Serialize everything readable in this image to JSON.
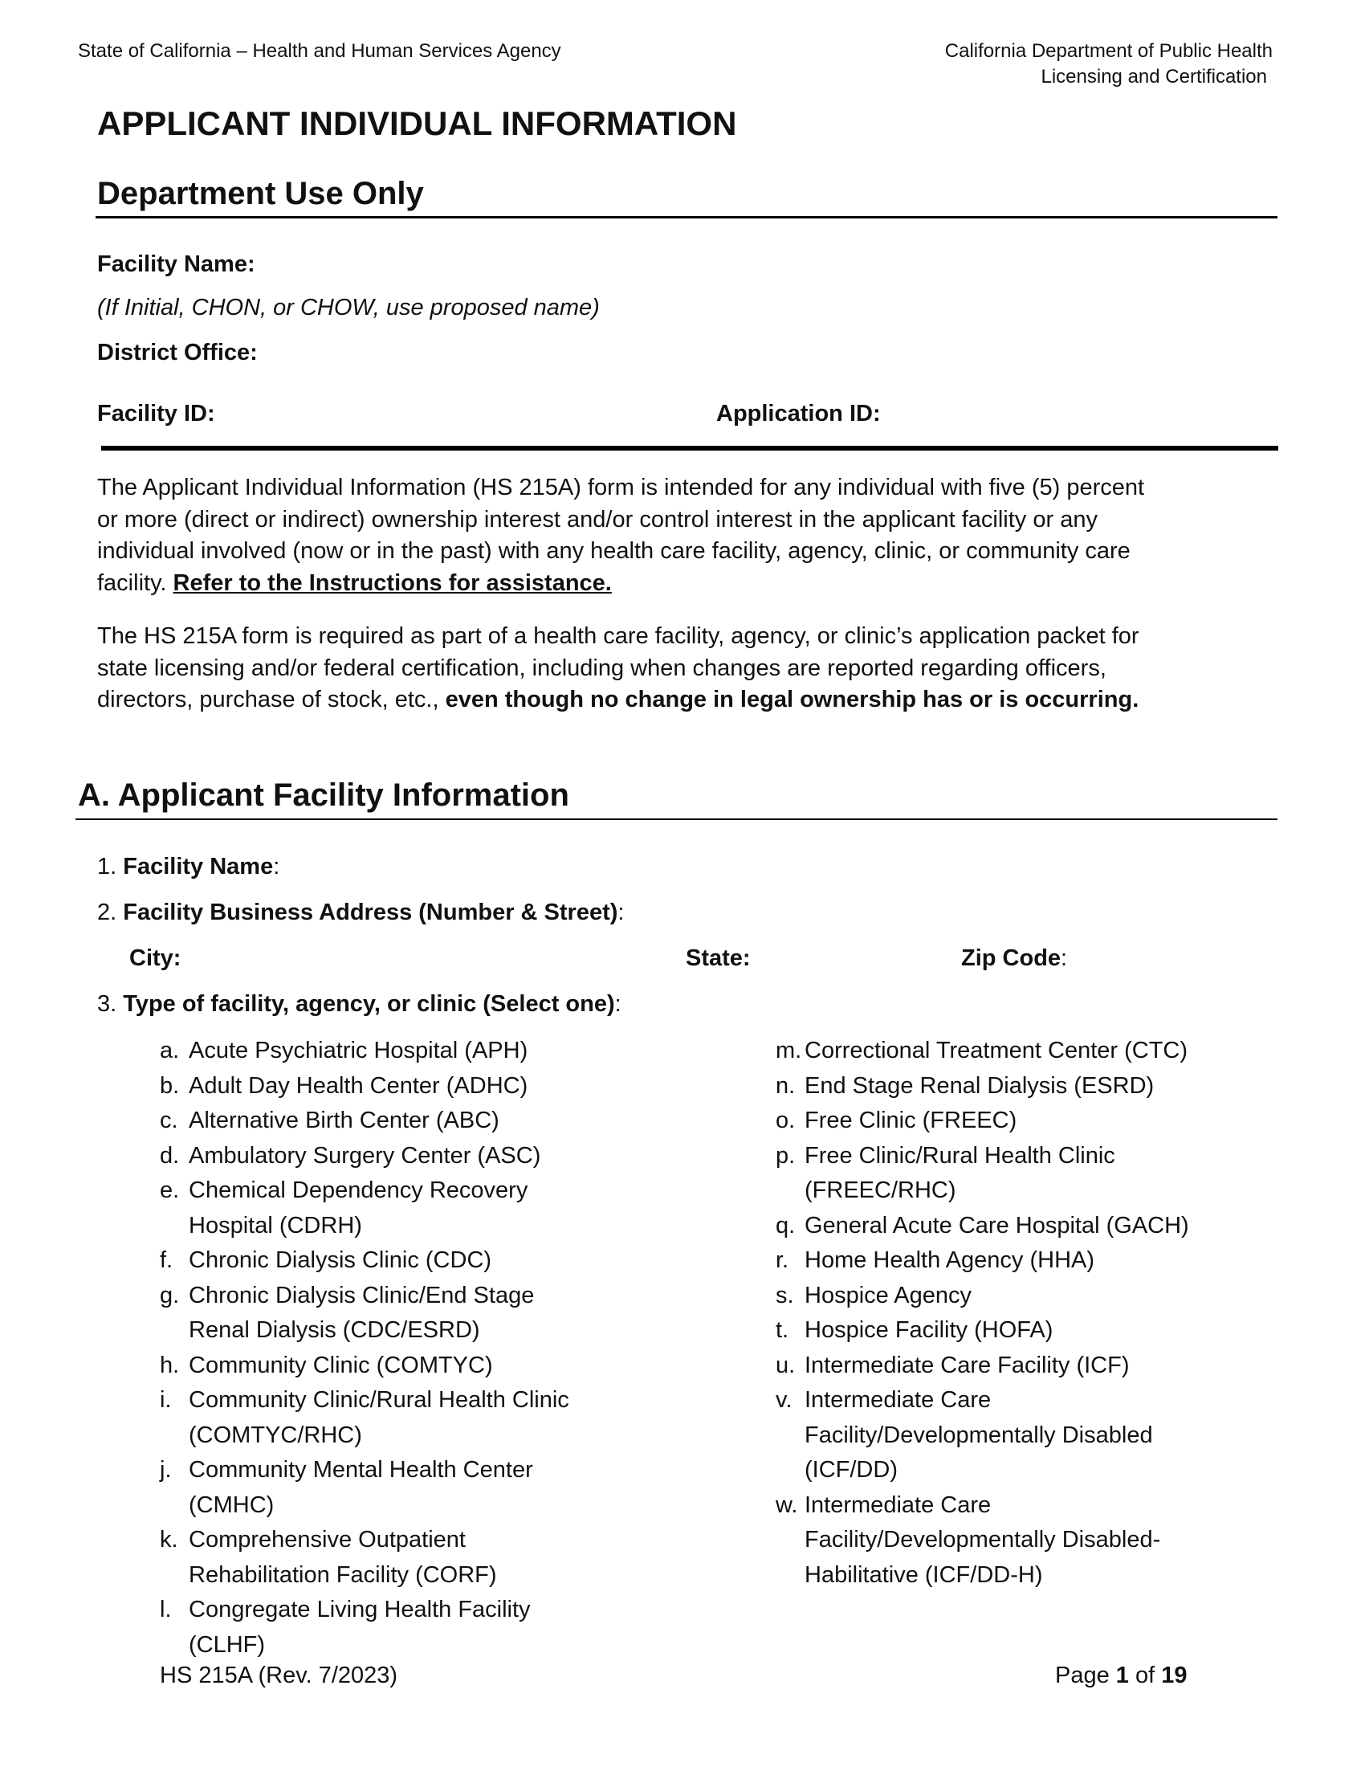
{
  "header": {
    "left": "State of California – Health and Human Services Agency",
    "right_line1": "California Department of Public Health",
    "right_line2": "Licensing and Certification"
  },
  "title": "APPLICANT INDIVIDUAL INFORMATION",
  "dept": {
    "heading": "Department Use Only",
    "facility_name": "Facility Name:",
    "facility_name_note": "(If Initial, CHON, or CHOW, use proposed name)",
    "district_office": "District Office:",
    "facility_id": "Facility ID:",
    "application_id": "Application ID:"
  },
  "intro": {
    "p1": "The Applicant Individual Information (HS 215A) form is intended for any individual with five (5) percent or more (direct or indirect) ownership interest and/or control interest in the applicant facility or any individual involved (now or in the past) with any health care facility, agency, clinic, or community care facility.",
    "p1_link": "Refer to the Instructions for assistance.",
    "p2": "The HS 215A form is required as part of a health care facility, agency, or clinic’s application packet for state licensing and/or federal certification, including when changes are reported regarding officers, directors, purchase of stock, etc.,",
    "p2_bold": "even though no change in legal ownership has or is occurring."
  },
  "sectionA": {
    "heading": "A.  Applicant Facility Information",
    "q1_num": "1.",
    "q1": "Facility Name",
    "q2_num": "2.",
    "q2": "Facility Business Address (Number & Street)",
    "city": "City:",
    "state": "State:",
    "zip": "Zip Code",
    "q3_num": "3.",
    "q3": "Type of facility, agency, or clinic (Select one)",
    "colon": ":",
    "options_left": [
      {
        "letter": "a.",
        "text": "Acute Psychiatric Hospital (APH)"
      },
      {
        "letter": "b.",
        "text": "Adult Day Health Center (ADHC)"
      },
      {
        "letter": "c.",
        "text": "Alternative Birth Center (ABC)"
      },
      {
        "letter": "d.",
        "text": "Ambulatory Surgery Center (ASC)"
      },
      {
        "letter": "e.",
        "text": "Chemical Dependency Recovery\nHospital (CDRH)"
      },
      {
        "letter": "f.",
        "text": "Chronic Dialysis Clinic (CDC)"
      },
      {
        "letter": "g.",
        "text": "Chronic Dialysis Clinic/End Stage\nRenal Dialysis (CDC/ESRD)"
      },
      {
        "letter": "h.",
        "text": "Community Clinic (COMTYC)"
      },
      {
        "letter": "i.",
        "text": "Community Clinic/Rural Health Clinic\n(COMTYC/RHC)"
      },
      {
        "letter": "j.",
        "text": "Community Mental Health Center\n(CMHC)"
      },
      {
        "letter": "k.",
        "text": "Comprehensive Outpatient\nRehabilitation Facility (CORF)"
      },
      {
        "letter": "l.",
        "text": "Congregate Living Health Facility\n(CLHF)"
      }
    ],
    "options_right": [
      {
        "letter": "m.",
        "text": "Correctional Treatment Center (CTC)"
      },
      {
        "letter": "n.",
        "text": "End Stage Renal Dialysis (ESRD)"
      },
      {
        "letter": "o.",
        "text": "Free Clinic (FREEC)"
      },
      {
        "letter": "p.",
        "text": "Free Clinic/Rural Health Clinic\n(FREEC/RHC)"
      },
      {
        "letter": "q.",
        "text": "General Acute Care Hospital (GACH)"
      },
      {
        "letter": "r.",
        "text": "Home Health Agency (HHA)"
      },
      {
        "letter": "s.",
        "text": "Hospice Agency"
      },
      {
        "letter": "t.",
        "text": "Hospice Facility (HOFA)"
      },
      {
        "letter": "u.",
        "text": "Intermediate Care Facility (ICF)"
      },
      {
        "letter": "v.",
        "text": "Intermediate Care\nFacility/Developmentally Disabled\n(ICF/DD)"
      },
      {
        "letter": "w.",
        "text": "Intermediate Care\nFacility/Developmentally Disabled-\nHabilitative (ICF/DD-H)"
      }
    ]
  },
  "footer": {
    "form": "HS 215A (Rev. 7/2023)",
    "page_prefix": "Page ",
    "page": "1",
    "of": " of ",
    "total": "19"
  }
}
